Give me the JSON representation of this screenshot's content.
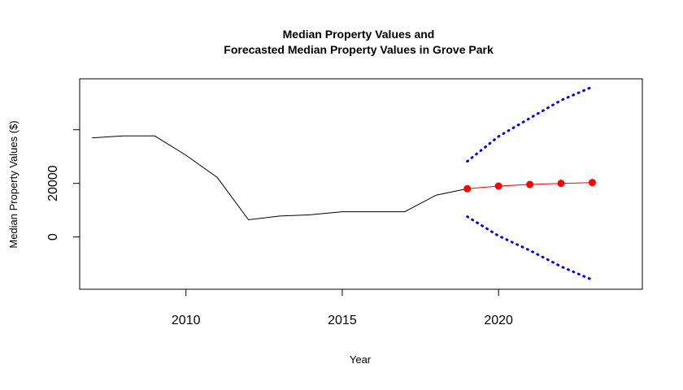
{
  "chart_data": {
    "type": "line",
    "title_line1": "Median Property Values and",
    "title_line2": "Forecasted Median Property Values in Grove Park",
    "xlabel": "Year",
    "ylabel": "Median Property Values ($)",
    "xlim": [
      2006.6,
      2024.6
    ],
    "ylim": [
      -19500,
      59000
    ],
    "x_ticks": [
      2010,
      2015,
      2020
    ],
    "x_tick_labels": [
      "2010",
      "2015",
      "2020"
    ],
    "y_ticks": [
      0,
      20000,
      40000
    ],
    "y_tick_labels": [
      "0",
      "20000",
      ""
    ],
    "grid": false,
    "series": [
      {
        "role": "observed",
        "color": "#000000",
        "x": [
          2007,
          2008,
          2009,
          2010,
          2011,
          2012,
          2013,
          2014,
          2015,
          2016,
          2017,
          2018,
          2019
        ],
        "values": [
          37000,
          37700,
          37700,
          30500,
          22200,
          6400,
          7800,
          8300,
          9400,
          9400,
          9400,
          15600,
          18000
        ]
      },
      {
        "role": "forecast",
        "color": "#ff0000",
        "x": [
          2019,
          2020,
          2021,
          2022,
          2023
        ],
        "values": [
          18000,
          19000,
          19600,
          20000,
          20300
        ]
      },
      {
        "role": "upper-bound",
        "color": "#0000ff",
        "x": [
          2019,
          2020,
          2021,
          2022,
          2023
        ],
        "values": [
          28200,
          37500,
          44300,
          51000,
          56000
        ]
      },
      {
        "role": "lower-bound",
        "color": "#0000ff",
        "x": [
          2019,
          2020,
          2021,
          2022,
          2023
        ],
        "values": [
          7600,
          400,
          -5000,
          -11000,
          -16000
        ]
      }
    ]
  }
}
